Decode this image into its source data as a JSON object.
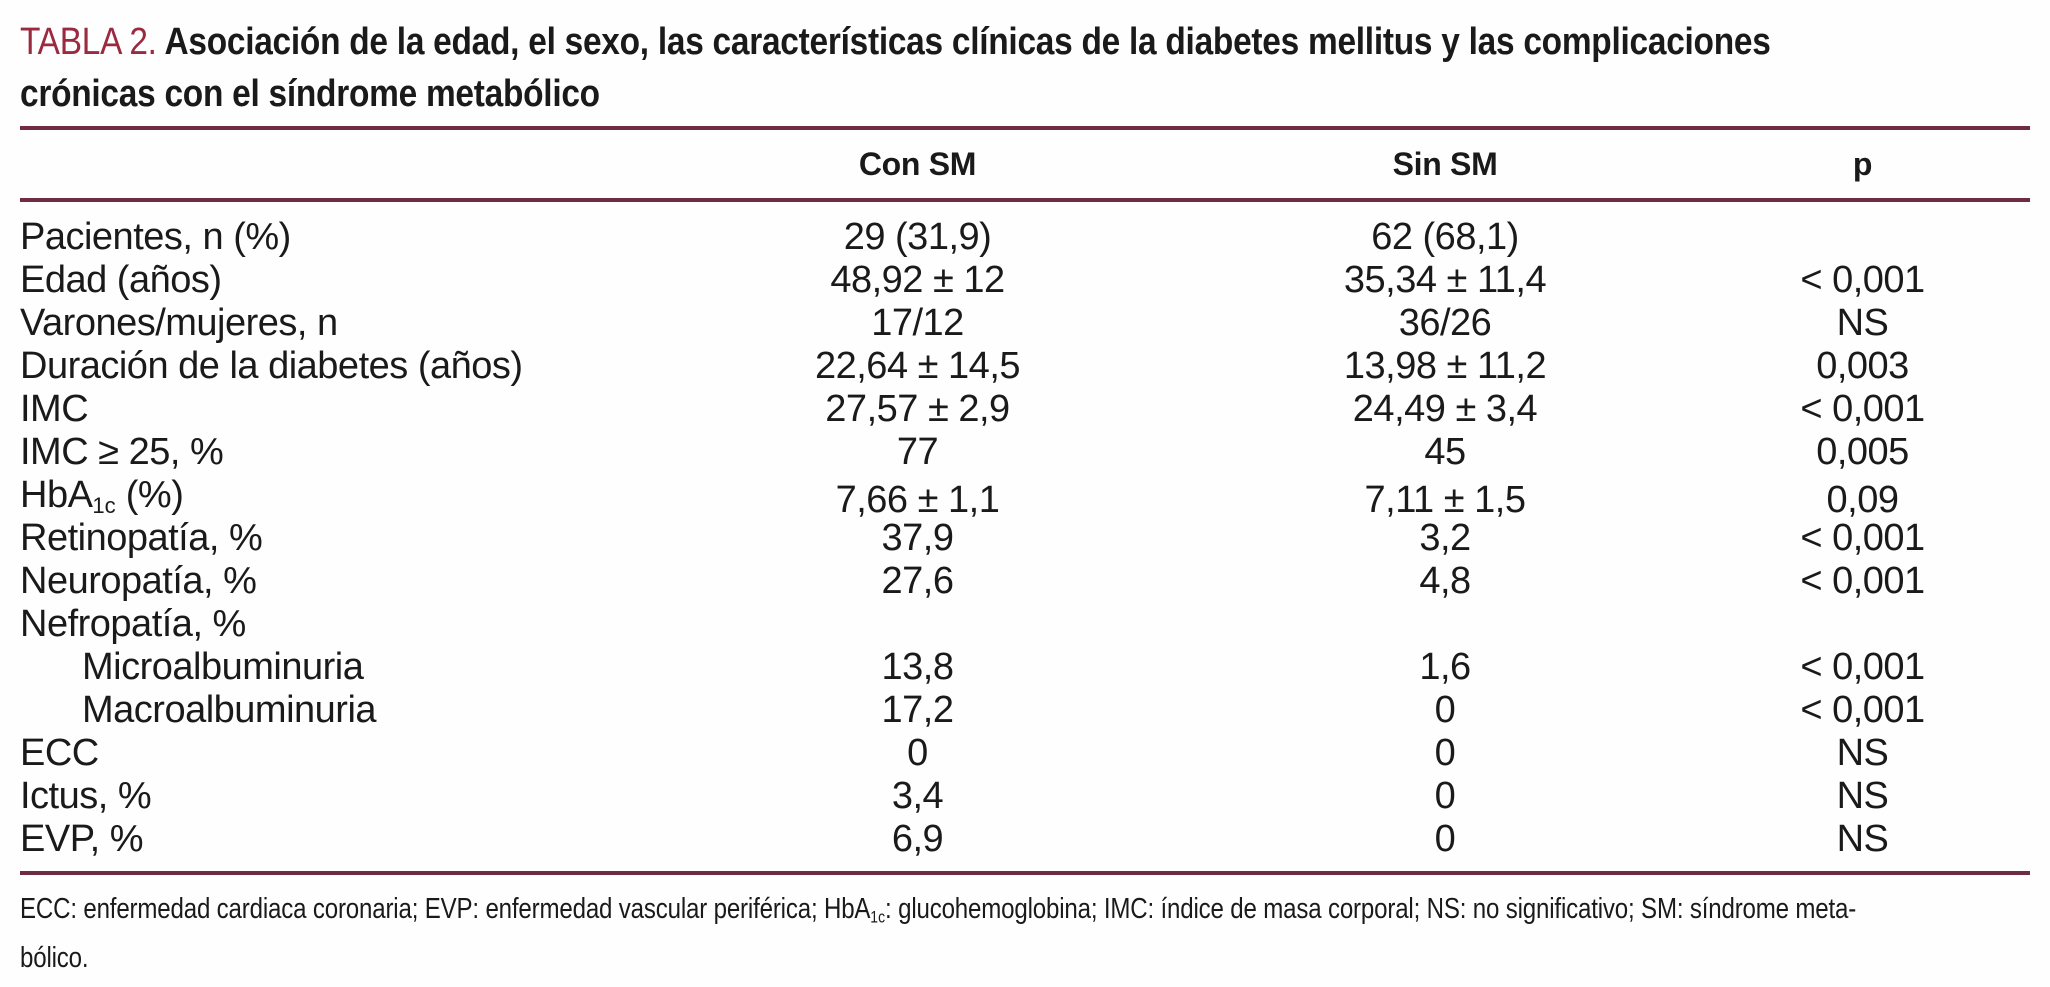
{
  "page": {
    "accent_color": "#9b2a40",
    "rule_color": "#6f2c43",
    "text_color": "#1a1a1a",
    "table_label": "TABLA 2.",
    "title_line1": "Asociación de la edad, el sexo, las características clínicas de la diabetes mellitus y las complicaciones",
    "title_line2": "crónicas con el síndrome metabólico"
  },
  "table": {
    "column_headers": [
      "Con SM",
      "Sin SM",
      "p"
    ],
    "rows": [
      {
        "label": "Pacientes, n (%)",
        "indent": false,
        "con_sm": "29 (31,9)",
        "sin_sm": "62 (68,1)",
        "p": ""
      },
      {
        "label": "Edad (años)",
        "indent": false,
        "con_sm": "48,92 ± 12",
        "sin_sm": "35,34 ± 11,4",
        "p": "< 0,001"
      },
      {
        "label": "Varones/mujeres, n",
        "indent": false,
        "con_sm": "17/12",
        "sin_sm": "36/26",
        "p": "NS"
      },
      {
        "label": "Duración de la diabetes (años)",
        "indent": false,
        "con_sm": "22,64 ± 14,5",
        "sin_sm": "13,98 ± 11,2",
        "p": "0,003"
      },
      {
        "label": "IMC",
        "indent": false,
        "con_sm": "27,57 ± 2,9",
        "sin_sm": "24,49 ± 3,4",
        "p": "< 0,001"
      },
      {
        "label": "IMC ≥ 25, %",
        "indent": false,
        "con_sm": "77",
        "sin_sm": "45",
        "p": "0,005"
      },
      {
        "label": "HbA_{1c} (%)",
        "indent": false,
        "con_sm": "7,66 ± 1,1",
        "sin_sm": "7,11 ± 1,5",
        "p": "0,09"
      },
      {
        "label": "Retinopatía, %",
        "indent": false,
        "con_sm": "37,9",
        "sin_sm": "3,2",
        "p": "< 0,001"
      },
      {
        "label": "Neuropatía, %",
        "indent": false,
        "con_sm": "27,6",
        "sin_sm": "4,8",
        "p": "< 0,001"
      },
      {
        "label": "Nefropatía, %",
        "indent": false,
        "con_sm": "",
        "sin_sm": "",
        "p": ""
      },
      {
        "label": "Microalbuminuria",
        "indent": true,
        "con_sm": "13,8",
        "sin_sm": "1,6",
        "p": "< 0,001"
      },
      {
        "label": "Macroalbuminuria",
        "indent": true,
        "con_sm": "17,2",
        "sin_sm": "0",
        "p": "< 0,001"
      },
      {
        "label": "ECC",
        "indent": false,
        "con_sm": "0",
        "sin_sm": "0",
        "p": "NS"
      },
      {
        "label": "Ictus, %",
        "indent": false,
        "con_sm": "3,4",
        "sin_sm": "0",
        "p": "NS"
      },
      {
        "label": "EVP, %",
        "indent": false,
        "con_sm": "6,9",
        "sin_sm": "0",
        "p": "NS"
      }
    ],
    "footnote_lines": [
      "ECC: enfermedad cardiaca coronaria; EVP: enfermedad vascular periférica; HbA_{1c}: glucohemoglobina; IMC: índice de masa corporal; NS: no significativo; SM: síndrome meta-",
      "bólico."
    ]
  }
}
